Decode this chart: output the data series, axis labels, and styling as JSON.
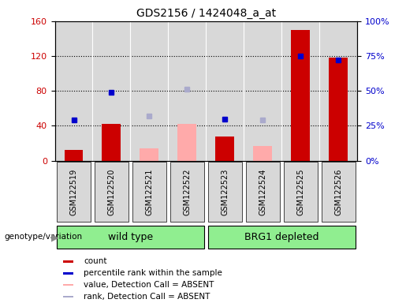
{
  "title": "GDS2156 / 1424048_a_at",
  "samples": [
    "GSM122519",
    "GSM122520",
    "GSM122521",
    "GSM122522",
    "GSM122523",
    "GSM122524",
    "GSM122525",
    "GSM122526"
  ],
  "count_values": [
    12,
    42,
    null,
    null,
    28,
    null,
    150,
    118
  ],
  "count_absent_values": [
    null,
    null,
    14,
    42,
    null,
    17,
    null,
    null
  ],
  "rank_values": [
    29,
    49,
    null,
    null,
    30,
    null,
    75,
    72
  ],
  "rank_absent_values": [
    null,
    null,
    32,
    51,
    null,
    29,
    null,
    null
  ],
  "groups": [
    {
      "label": "wild type",
      "start": 0,
      "end": 3,
      "color": "#90EE90"
    },
    {
      "label": "BRG1 depleted",
      "start": 4,
      "end": 7,
      "color": "#90EE90"
    }
  ],
  "left_ylim": [
    0,
    160
  ],
  "right_ylim": [
    0,
    100
  ],
  "left_yticks": [
    0,
    40,
    80,
    120,
    160
  ],
  "right_yticks": [
    0,
    25,
    50,
    75,
    100
  ],
  "right_yticklabels": [
    "0%",
    "25%",
    "50%",
    "75%",
    "100%"
  ],
  "bar_color_count": "#cc0000",
  "bar_color_absent": "#ffaaaa",
  "marker_color_rank": "#0000cc",
  "marker_color_rank_absent": "#aaaacc",
  "grid_color": "black",
  "bg_color": "#d8d8d8",
  "left_axis_color": "#cc0000",
  "right_axis_color": "#0000cc",
  "label_bg_color": "#d8d8d8",
  "group_color": "#90EE90"
}
